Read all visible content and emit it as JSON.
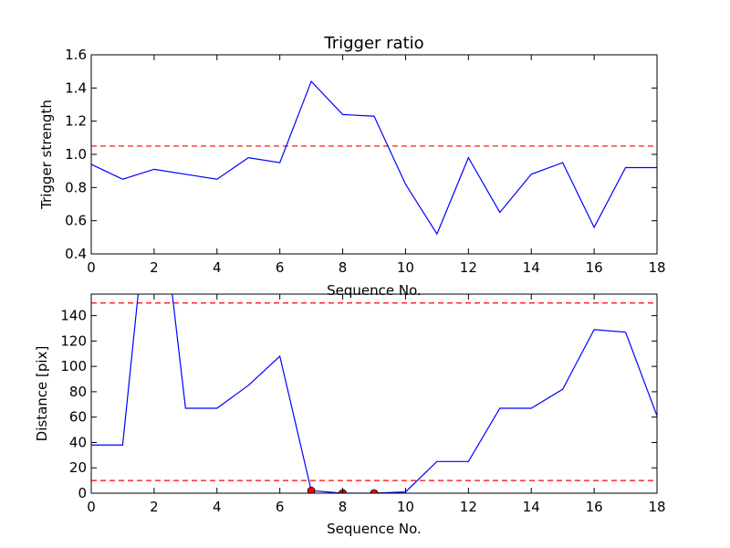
{
  "chart_data": [
    {
      "type": "line",
      "title": "Trigger ratio",
      "xlabel": "Sequence No.",
      "ylabel": "Trigger strength",
      "xlim": [
        0,
        18
      ],
      "ylim": [
        0.4,
        1.6
      ],
      "xticks": [
        "0",
        "2",
        "4",
        "6",
        "8",
        "10",
        "12",
        "14",
        "16",
        "18"
      ],
      "yticks": [
        "0.4",
        "0.6",
        "0.8",
        "1.0",
        "1.2",
        "1.4",
        "1.6"
      ],
      "grid": false,
      "series": [
        {
          "color": "#0000ff",
          "style": "solid",
          "x": [
            0,
            1,
            2,
            3,
            4,
            5,
            6,
            7,
            8,
            9,
            10,
            11,
            12,
            13,
            14,
            15,
            16,
            17,
            18
          ],
          "y": [
            0.94,
            0.85,
            0.91,
            0.88,
            0.85,
            0.98,
            0.95,
            1.44,
            1.24,
            1.23,
            0.82,
            0.52,
            0.98,
            0.65,
            0.88,
            0.95,
            0.56,
            0.92,
            0.92
          ]
        }
      ],
      "hlines": [
        {
          "y": 1.05,
          "color": "#ff0000",
          "style": "dashed"
        }
      ]
    },
    {
      "type": "line",
      "title": "",
      "xlabel": "Sequence No.",
      "ylabel": "Distance [pix]",
      "xlim": [
        0,
        18
      ],
      "ylim": [
        0,
        157
      ],
      "xticks": [
        "0",
        "2",
        "4",
        "6",
        "8",
        "10",
        "12",
        "14",
        "16",
        "18"
      ],
      "yticks": [
        "0",
        "20",
        "40",
        "60",
        "80",
        "100",
        "120",
        "140"
      ],
      "grid": false,
      "series": [
        {
          "color": "#0000ff",
          "style": "solid",
          "x": [
            0,
            1,
            2,
            3,
            4,
            5,
            6,
            7,
            8,
            9,
            10,
            11,
            12,
            13,
            14,
            15,
            16,
            17,
            18
          ],
          "y": [
            38,
            38,
            280,
            67,
            67,
            85,
            108,
            2,
            0,
            0,
            1,
            25,
            25,
            67,
            67,
            82,
            129,
            127,
            61
          ]
        }
      ],
      "markers": {
        "color": "#ff0000",
        "x": [
          7,
          8,
          9
        ],
        "y": [
          2,
          0,
          0
        ]
      },
      "hlines": [
        {
          "y": 150,
          "color": "#ff0000",
          "style": "dashed"
        },
        {
          "y": 10,
          "color": "#ff0000",
          "style": "dashed"
        }
      ]
    }
  ]
}
